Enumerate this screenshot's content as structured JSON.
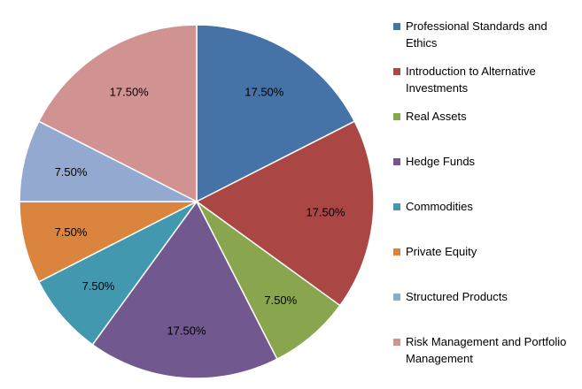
{
  "chart_data": {
    "type": "pie",
    "title": "",
    "slices": [
      {
        "label": "Professional Standards and Ethics",
        "value": 17.5,
        "display": "17.50%",
        "color": "#4572A7"
      },
      {
        "label": "Introduction to Alternative Investments",
        "value": 17.5,
        "display": "17.50%",
        "color": "#AA4643"
      },
      {
        "label": "Real Assets",
        "value": 7.5,
        "display": "7.50%",
        "color": "#89A54E"
      },
      {
        "label": "Hedge Funds",
        "value": 17.5,
        "display": "17.50%",
        "color": "#71588F"
      },
      {
        "label": "Commodities",
        "value": 7.5,
        "display": "7.50%",
        "color": "#4198AF"
      },
      {
        "label": "Private Equity",
        "value": 7.5,
        "display": "7.50%",
        "color": "#DB843D"
      },
      {
        "label": "Structured Products",
        "value": 7.5,
        "display": "7.50%",
        "color": "#93A9CF"
      },
      {
        "label": "Risk Management and Portfolio Management",
        "value": 17.5,
        "display": "17.50%",
        "color": "#D19392"
      }
    ],
    "start_angle": "12 o'clock",
    "direction": "clockwise",
    "legend_position": "right"
  }
}
